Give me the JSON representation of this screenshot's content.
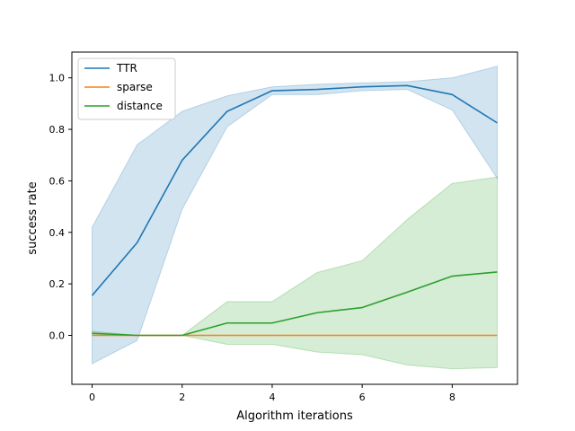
{
  "chart_data": {
    "type": "line",
    "xlabel": "Algorithm iterations",
    "ylabel": "success rate",
    "xlim": [
      -0.45,
      9.45
    ],
    "ylim": [
      -0.19,
      1.1
    ],
    "xticks": [
      0,
      2,
      4,
      6,
      8
    ],
    "yticks": [
      0.0,
      0.2,
      0.4,
      0.6,
      0.8,
      1.0
    ],
    "xtick_labels": [
      "0",
      "2",
      "4",
      "6",
      "8"
    ],
    "ytick_labels": [
      "0.0",
      "0.2",
      "0.4",
      "0.6",
      "0.8",
      "1.0"
    ],
    "grid": false,
    "legend_position": "top-left",
    "x": [
      0,
      1,
      2,
      3,
      4,
      5,
      6,
      7,
      8,
      9
    ],
    "series": [
      {
        "name": "TTR",
        "color": "#1f77b4",
        "values": [
          0.155,
          0.36,
          0.68,
          0.87,
          0.95,
          0.955,
          0.965,
          0.97,
          0.935,
          0.825
        ],
        "lower": [
          -0.11,
          -0.02,
          0.49,
          0.81,
          0.935,
          0.935,
          0.95,
          0.955,
          0.875,
          0.61
        ],
        "upper": [
          0.42,
          0.74,
          0.87,
          0.93,
          0.965,
          0.975,
          0.98,
          0.985,
          1.0,
          1.045
        ]
      },
      {
        "name": "sparse",
        "color": "#ff7f0e",
        "values": [
          0.0,
          0.0,
          0.0,
          0.0,
          0.0,
          0.0,
          0.0,
          0.0,
          0.0,
          0.0
        ],
        "lower": [
          0.0,
          0.0,
          0.0,
          0.0,
          0.0,
          0.0,
          0.0,
          0.0,
          0.0,
          0.0
        ],
        "upper": [
          0.0,
          0.0,
          0.0,
          0.0,
          0.0,
          0.0,
          0.0,
          0.0,
          0.0,
          0.0
        ]
      },
      {
        "name": "distance",
        "color": "#2ca02c",
        "values": [
          0.008,
          0.0,
          0.0,
          0.048,
          0.048,
          0.088,
          0.108,
          0.168,
          0.23,
          0.246
        ],
        "lower": [
          0.0,
          0.0,
          0.0,
          -0.035,
          -0.035,
          -0.065,
          -0.075,
          -0.115,
          -0.13,
          -0.125
        ],
        "upper": [
          0.016,
          0.0,
          0.0,
          0.131,
          0.131,
          0.244,
          0.29,
          0.45,
          0.59,
          0.615
        ]
      }
    ]
  }
}
